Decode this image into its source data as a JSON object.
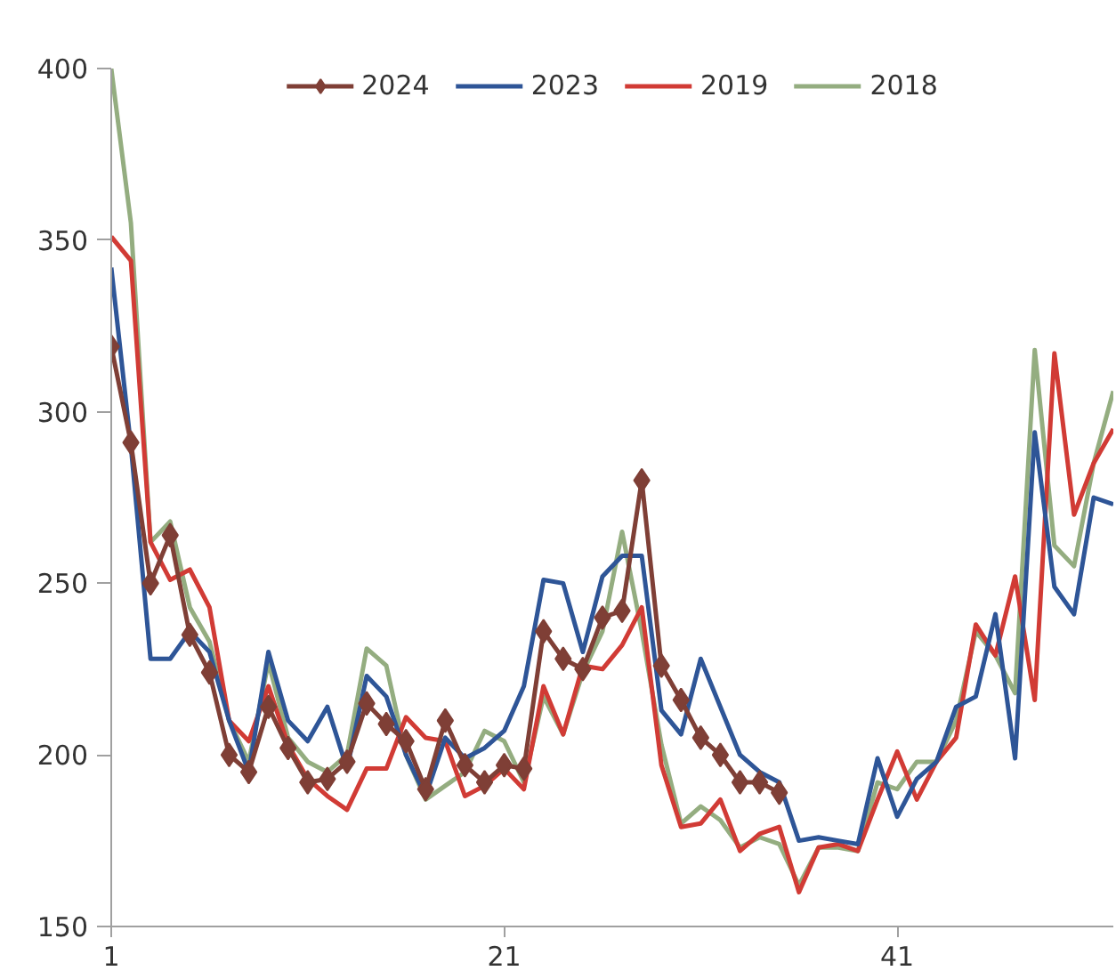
{
  "chart_data": {
    "type": "line",
    "x": [
      1,
      2,
      3,
      4,
      5,
      6,
      7,
      8,
      9,
      10,
      11,
      12,
      13,
      14,
      15,
      16,
      17,
      18,
      19,
      20,
      21,
      22,
      23,
      24,
      25,
      26,
      27,
      28,
      29,
      30,
      31,
      32,
      33,
      34,
      35,
      36,
      37,
      38,
      39,
      40,
      41,
      42,
      43,
      44,
      45,
      46,
      47,
      48,
      49,
      50,
      51,
      52
    ],
    "series": [
      {
        "name": "2024",
        "color": "#7f3f36",
        "marker": "diamond",
        "values": [
          319,
          291,
          250,
          264,
          235,
          224,
          200,
          195,
          214,
          202,
          192,
          193,
          198,
          215,
          209,
          204,
          190,
          210,
          197,
          192,
          197,
          196,
          236,
          228,
          225,
          240,
          242,
          280,
          226,
          216,
          205,
          200,
          192,
          192,
          189,
          null,
          null,
          null,
          null,
          null,
          null,
          null,
          null,
          null,
          null,
          null,
          null,
          null,
          null,
          null,
          null,
          null
        ]
      },
      {
        "name": "2023",
        "color": "#2e5597",
        "values": [
          342,
          290,
          228,
          228,
          236,
          230,
          210,
          195,
          230,
          210,
          204,
          214,
          196,
          223,
          217,
          200,
          188,
          205,
          199,
          202,
          207,
          220,
          251,
          250,
          230,
          252,
          258,
          258,
          213,
          206,
          228,
          214,
          200,
          195,
          192,
          175,
          176,
          175,
          174,
          199,
          182,
          193,
          198,
          214,
          217,
          241,
          199,
          294,
          249,
          241,
          275,
          273
        ]
      },
      {
        "name": "2019",
        "color": "#d13b35",
        "values": [
          351,
          344,
          262,
          251,
          254,
          243,
          210,
          204,
          220,
          203,
          193,
          188,
          184,
          196,
          196,
          211,
          205,
          204,
          188,
          191,
          196,
          190,
          220,
          206,
          226,
          225,
          232,
          243,
          197,
          179,
          180,
          187,
          172,
          177,
          179,
          160,
          173,
          174,
          172,
          187,
          201,
          187,
          198,
          205,
          238,
          229,
          252,
          216,
          317,
          270,
          285,
          295
        ]
      },
      {
        "name": "2018",
        "color": "#94ad80",
        "values": [
          400,
          355,
          262,
          268,
          243,
          233,
          210,
          198,
          227,
          205,
          198,
          195,
          200,
          231,
          226,
          200,
          187,
          191,
          195,
          207,
          204,
          192,
          217,
          206,
          224,
          236,
          265,
          236,
          203,
          180,
          185,
          181,
          173,
          176,
          174,
          162,
          173,
          173,
          172,
          192,
          190,
          198,
          198,
          210,
          236,
          229,
          218,
          318,
          261,
          255,
          285,
          306
        ]
      }
    ],
    "xlim": [
      1,
      52
    ],
    "xticks": [
      1,
      21,
      41
    ],
    "ylim": [
      150,
      400
    ],
    "yticks": [
      150,
      200,
      250,
      300,
      350,
      400
    ],
    "grid": false,
    "legend": "top",
    "line_style": "solid"
  }
}
